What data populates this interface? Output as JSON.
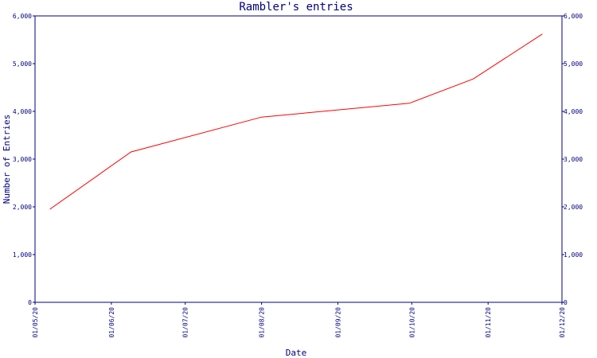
{
  "chart_data": {
    "type": "line",
    "title": "Rambler's entries",
    "xlabel": "Date",
    "ylabel": "Number of Entries",
    "x_ticks": [
      "01/05/20",
      "01/06/20",
      "01/07/20",
      "01/08/20",
      "01/09/20",
      "01/10/20",
      "01/11/20",
      "01/12/20"
    ],
    "y_ticks": [
      "0",
      "1,000",
      "2,000",
      "3,000",
      "4,000",
      "5,000",
      "6,000"
    ],
    "ylim": [
      0,
      6000
    ],
    "grid": false,
    "series": [
      {
        "x": [
          "2020-05-07",
          "2020-06-09",
          "2020-08-01",
          "2020-09-30",
          "2020-10-26",
          "2020-11-23"
        ],
        "values": [
          1950,
          3150,
          3880,
          4170,
          4680,
          5620
        ]
      }
    ]
  },
  "colors": {
    "axis": "#000080",
    "text": "#000080",
    "line": "#ff0000",
    "background": "#ffffff"
  }
}
